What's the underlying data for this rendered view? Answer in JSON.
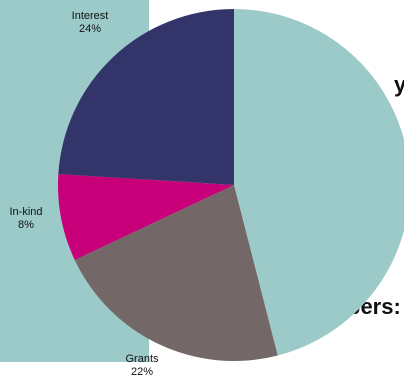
{
  "chart_data": {
    "type": "pie",
    "title": "",
    "slices": [
      {
        "label": "",
        "pct_text": "",
        "value": 46,
        "color": "#9ccac9"
      },
      {
        "label": "Grants",
        "pct_text": "22%",
        "value": 22,
        "color": "#736867"
      },
      {
        "label": "In-kind",
        "pct_text": "8%",
        "value": 8,
        "color": "#c7007a"
      },
      {
        "label": "Interest",
        "pct_text": "24%",
        "value": 24,
        "color": "#33356a"
      }
    ],
    "start_angle_deg": 0,
    "direction": "clockwise",
    "legend": "none"
  },
  "background_text": {
    "fragment_1": "y",
    "fragment_2": "bers:"
  }
}
